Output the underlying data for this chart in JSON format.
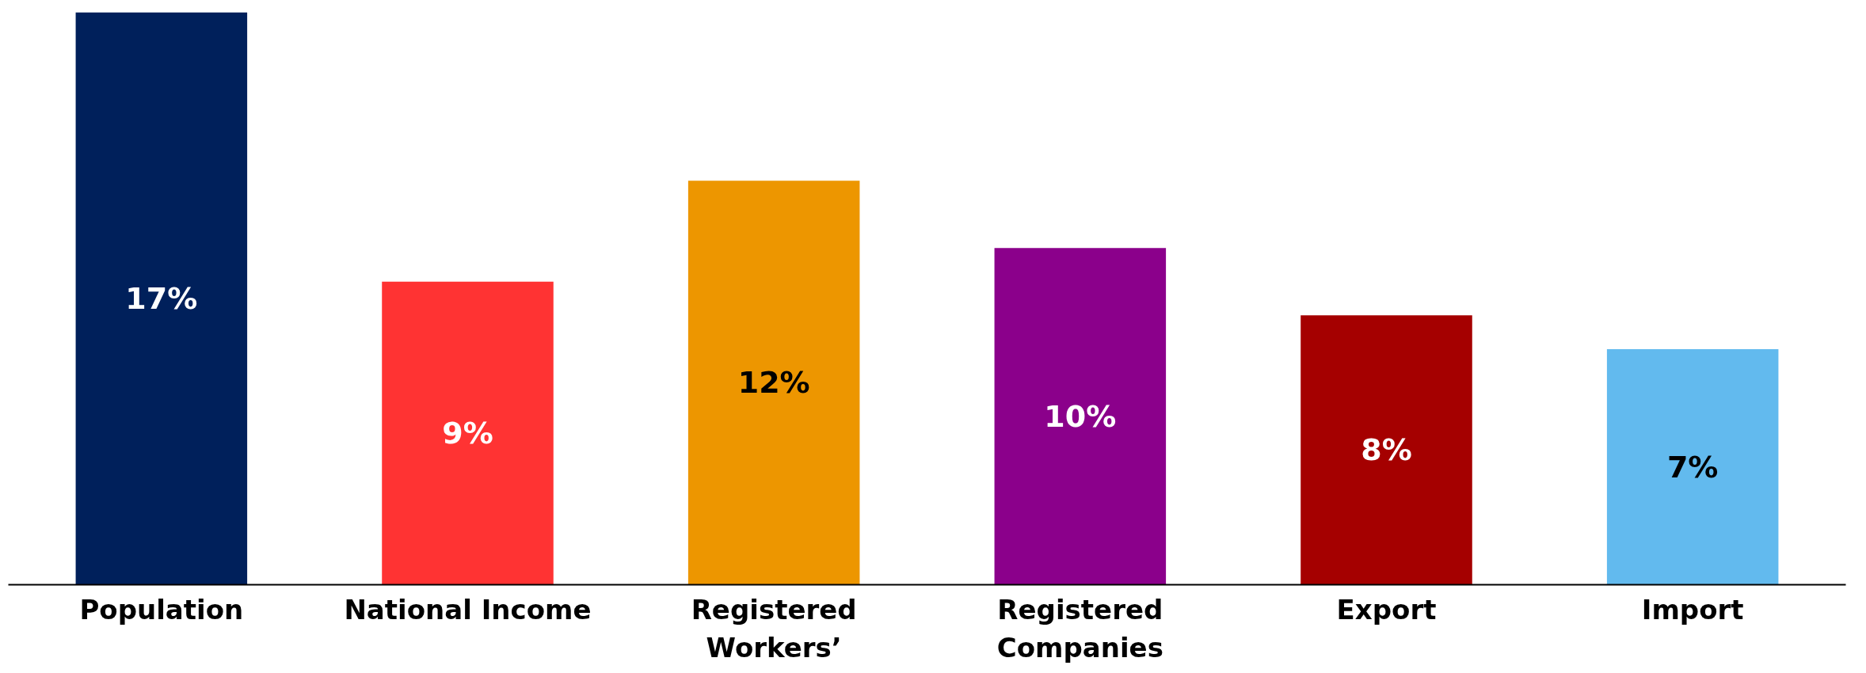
{
  "chart_data": {
    "type": "bar",
    "categories": [
      "Population",
      "National Income",
      "Registered\nWorkers’",
      "Registered\nCompanies",
      "Export",
      "Import"
    ],
    "values": [
      17,
      9,
      12,
      10,
      8,
      7
    ],
    "colors": [
      "#00205b",
      "#ff3333",
      "#ed9600",
      "#8b008b",
      "#a50000",
      "#62baee"
    ],
    "value_labels": [
      "17%",
      "9%",
      "12%",
      "10%",
      "8%",
      "7%"
    ]
  }
}
